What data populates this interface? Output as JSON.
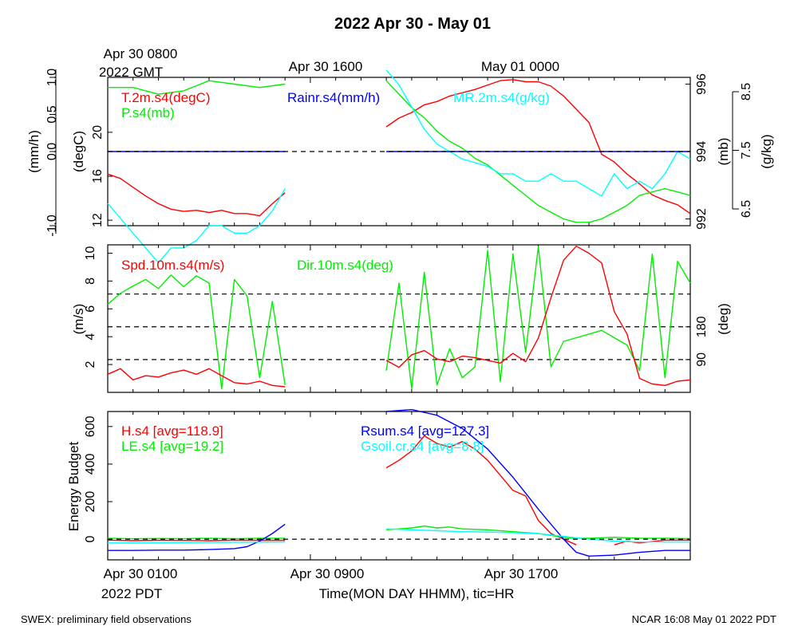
{
  "title": "2022 Apr 30 - May 01",
  "top_time_labels": {
    "start_line1": "Apr 30 0800",
    "start_line2": "2022 GMT",
    "mid": "Apr 30 1600",
    "end": "May 01 0000"
  },
  "bottom_time_labels": {
    "t1": "Apr 30 0100",
    "t1_zone": "2022 PDT",
    "t2": "Apr 30 0900",
    "t3": "Apr 30 1700",
    "axis_title": "Time(MON DAY HHMM), tic=HR"
  },
  "footer": {
    "left": "SWEX: preliminary field observations",
    "right": "NCAR 16:08 May 01 2022 PDT"
  },
  "colors": {
    "red": "#ff0000",
    "green": "#00ee00",
    "blue": "#0000ff",
    "cyan": "#00ffff",
    "axis": "#000000"
  },
  "chart_data": [
    {
      "type": "line",
      "panel": "top",
      "x_unit": "hours since Apr 30 0100 PDT",
      "xlim": [
        0,
        23
      ],
      "left_axes": [
        {
          "label": "(mm/h)",
          "ticks": [
            "-1.0",
            "0.0",
            "0.5",
            "1.0"
          ],
          "ylim": [
            -1,
            1
          ]
        },
        {
          "label": "(degC)",
          "ticks": [
            "12",
            "16",
            "20"
          ],
          "ylim": [
            11.5,
            25
          ]
        }
      ],
      "right_axes": [
        {
          "label": "(mb)",
          "ticks": [
            "992",
            "994",
            "996"
          ],
          "ylim": [
            991.8,
            996.2
          ]
        },
        {
          "label": "(g/kg)",
          "ticks": [
            "6.5",
            "7.5",
            "8.5"
          ],
          "ylim": [
            6.5,
            8.5
          ]
        }
      ],
      "reference_lines": [
        {
          "value": 0.0,
          "axis": "(mm/h)",
          "style": "dashed"
        }
      ],
      "series": [
        {
          "name": "T.2m.s4(degC)",
          "color": "#ff0000",
          "axis": "(degC)",
          "segments": [
            {
              "x": [
                0,
                0.5,
                1,
                1.5,
                2,
                2.5,
                3,
                3.5,
                4,
                4.5,
                5,
                5.5,
                6,
                6.5,
                7
              ],
              "y": [
                16.2,
                15.8,
                15.0,
                14.2,
                13.5,
                13.0,
                12.8,
                12.9,
                12.7,
                12.9,
                12.6,
                12.6,
                12.4,
                13.5,
                14.5
              ]
            },
            {
              "x": [
                11,
                11.5,
                12,
                12.5,
                13,
                13.5,
                14,
                14.5,
                15,
                15.5,
                16,
                16.5,
                17,
                17.5,
                18,
                18.5,
                19,
                19.5,
                20,
                20.5,
                21,
                21.5,
                22,
                22.5,
                23
              ],
              "y": [
                20.5,
                21.3,
                21.8,
                22.5,
                22.8,
                23.3,
                23.6,
                23.9,
                24.3,
                24.7,
                24.8,
                24.6,
                24.6,
                24.2,
                23.3,
                22.1,
                20.9,
                18.0,
                17.3,
                16.2,
                15.3,
                14.3,
                13.8,
                13.4,
                12.6
              ]
            }
          ]
        },
        {
          "name": "P.s4(mb)",
          "color": "#00ee00",
          "axis": "(mb)",
          "segments": [
            {
              "x": [
                0,
                1,
                2,
                3,
                4,
                5,
                6,
                7
              ],
              "y": [
                995.9,
                995.9,
                995.7,
                995.8,
                996.1,
                996.0,
                995.9,
                996.0
              ]
            },
            {
              "x": [
                11,
                11.5,
                12,
                12.5,
                13,
                13.5,
                14,
                14.5,
                15,
                15.5,
                16,
                16.5,
                17,
                17.5,
                18,
                18.5,
                19,
                19.5,
                20,
                20.5,
                21,
                21.5,
                22,
                22.5,
                23
              ],
              "y": [
                996.1,
                995.7,
                995.3,
                995.0,
                994.6,
                994.3,
                994.1,
                993.8,
                993.6,
                993.3,
                993.0,
                992.7,
                992.4,
                992.2,
                992.0,
                991.9,
                991.9,
                992.0,
                992.2,
                992.4,
                992.7,
                992.8,
                992.9,
                992.8,
                992.7
              ]
            }
          ]
        },
        {
          "name": "MR.2m.s4(g/kg)",
          "color": "#00ffff",
          "axis": "(g/kg)",
          "segments": [
            {
              "x": [
                0,
                0.5,
                1,
                1.5,
                2,
                2.5,
                3,
                3.5,
                4,
                4.5,
                5,
                5.5,
                6,
                6.5,
                7
              ],
              "y": [
                6.8,
                6.6,
                6.4,
                6.2,
                6.0,
                6.2,
                6.2,
                6.3,
                6.5,
                6.5,
                6.4,
                6.4,
                6.5,
                6.7,
                7.0
              ]
            },
            {
              "x": [
                11,
                11.5,
                12,
                12.5,
                13,
                13.5,
                14,
                14.5,
                15,
                15.5,
                16,
                16.5,
                17,
                17.5,
                18,
                18.5,
                19,
                19.5,
                20,
                20.5,
                21,
                21.5,
                22,
                22.5,
                23
              ],
              "y": [
                8.6,
                8.4,
                8.1,
                7.8,
                7.6,
                7.5,
                7.4,
                7.35,
                7.3,
                7.2,
                7.2,
                7.1,
                7.1,
                7.2,
                7.1,
                7.1,
                7.0,
                6.9,
                7.2,
                7.0,
                7.1,
                7.0,
                7.2,
                7.5,
                7.4
              ]
            }
          ]
        },
        {
          "name": "Rainr.s4(mm/h)",
          "color": "#0000ff",
          "axis": "(mm/h)",
          "segments": [
            {
              "x": [
                0,
                7
              ],
              "y": [
                0,
                0
              ]
            },
            {
              "x": [
                11,
                23
              ],
              "y": [
                0,
                0
              ]
            }
          ]
        }
      ]
    },
    {
      "type": "line",
      "panel": "middle",
      "x_unit": "hours since Apr 30 0100 PDT",
      "xlim": [
        0,
        23
      ],
      "left_axis": {
        "label": "(m/s)",
        "ticks": [
          "2",
          "4",
          "6",
          "8",
          "10"
        ],
        "ylim": [
          0,
          10.6
        ]
      },
      "right_axis": {
        "label": "(deg)",
        "ticks": [
          "90",
          "180"
        ],
        "ylim": [
          0,
          405
        ]
      },
      "reference_lines": [
        {
          "value": 90,
          "axis": "(deg)",
          "style": "dashed"
        },
        {
          "value": 180,
          "axis": "(deg)",
          "style": "dashed"
        },
        {
          "value": 270,
          "axis": "(deg)",
          "style": "dashed"
        }
      ],
      "series": [
        {
          "name": "Spd.10m.s4(m/s)",
          "color": "#ff0000",
          "axis": "(m/s)",
          "segments": [
            {
              "x": [
                0,
                0.5,
                1,
                1.5,
                2,
                2.5,
                3,
                3.5,
                4,
                4.5,
                5,
                5.5,
                6,
                6.5,
                7
              ],
              "y": [
                1.3,
                1.7,
                0.9,
                1.2,
                1.1,
                1.4,
                1.6,
                1.3,
                1.7,
                1.2,
                0.7,
                0.6,
                0.8,
                0.5,
                0.4
              ]
            },
            {
              "x": [
                11,
                11.5,
                12,
                12.5,
                13,
                13.5,
                14,
                14.5,
                15,
                15.5,
                16,
                16.5,
                17,
                17.5,
                18,
                18.5,
                19,
                19.5,
                20,
                20.5,
                21,
                21.5,
                22,
                22.5,
                23
              ],
              "y": [
                2.3,
                1.8,
                2.7,
                3.0,
                2.4,
                2.2,
                2.6,
                2.5,
                2.3,
                2.1,
                2.8,
                2.2,
                3.9,
                6.8,
                9.5,
                10.5,
                10.0,
                9.3,
                5.8,
                4.2,
                1.0,
                0.6,
                0.5,
                0.8,
                0.9
              ]
            }
          ]
        },
        {
          "name": "Dir.10m.s4(deg)",
          "color": "#00ee00",
          "axis": "(deg)",
          "segments": [
            {
              "x": [
                0,
                0.5,
                1,
                1.5,
                2,
                2.5,
                3,
                3.5,
                4,
                4.5,
                5,
                5.5,
                6,
                6.5,
                7
              ],
              "y": [
                242,
                272,
                292,
                310,
                285,
                322,
                290,
                320,
                300,
                10,
                310,
                265,
                40,
                250,
                20
              ]
            },
            {
              "x": [
                11,
                11.5,
                12,
                12.5,
                13,
                13.5,
                14,
                14.5,
                15,
                15.5,
                16,
                16.5,
                17,
                17.5,
                18,
                18.5,
                19,
                19.5,
                20,
                20.5,
                21,
                21.5,
                22,
                22.5,
                23
              ],
              "y": [
                60,
                300,
                10,
                330,
                20,
                120,
                40,
                70,
                390,
                30,
                380,
                110,
                400,
                70,
                140,
                150,
                160,
                170,
                150,
                130,
                60,
                380,
                40,
                360,
                300
              ]
            }
          ]
        }
      ]
    },
    {
      "type": "line",
      "panel": "bottom",
      "x_unit": "hours since Apr 30 0100 PDT",
      "xlim": [
        0,
        23
      ],
      "ylabel": "Energy Budget",
      "ylim": [
        -110,
        680
      ],
      "y_ticks": [
        "0",
        "200",
        "400",
        "600"
      ],
      "reference_lines": [
        {
          "value": 0,
          "style": "dashed"
        }
      ],
      "series": [
        {
          "name": "H.s4 [avg=118.9]",
          "color": "#ff0000",
          "segments": [
            {
              "x": [
                0,
                1,
                2,
                3,
                4,
                5,
                6,
                7
              ],
              "y": [
                -5,
                -8,
                -6,
                -7,
                -8,
                -5,
                -6,
                -6
              ]
            },
            {
              "x": [
                11,
                11.5,
                12,
                12.5,
                13,
                13.5,
                14,
                14.5,
                15,
                15.5,
                16,
                16.5,
                17,
                17.5,
                18,
                18.5
              ],
              "y": [
                380,
                420,
                470,
                550,
                510,
                490,
                520,
                480,
                420,
                340,
                260,
                230,
                100,
                30,
                0,
                -30
              ]
            },
            {
              "x": [
                20,
                20.5,
                21,
                22,
                23
              ],
              "y": [
                -30,
                -10,
                -20,
                -5,
                -5
              ]
            }
          ]
        },
        {
          "name": "LE.s4 [avg=19.2]",
          "color": "#00ee00",
          "segments": [
            {
              "x": [
                0,
                1,
                2,
                3,
                4,
                5,
                6,
                7
              ],
              "y": [
                5,
                2,
                4,
                3,
                5,
                3,
                5,
                5
              ]
            },
            {
              "x": [
                11,
                11.5,
                12,
                12.5,
                13,
                13.5,
                14,
                15,
                16,
                17,
                18,
                18.5,
                19,
                20,
                21,
                22,
                23
              ],
              "y": [
                50,
                55,
                60,
                70,
                60,
                65,
                55,
                50,
                40,
                30,
                10,
                5,
                5,
                10,
                5,
                5,
                3
              ]
            }
          ]
        },
        {
          "name": "Rsum.s4 [avg=127.3]",
          "color": "#0000ff",
          "segments": [
            {
              "x": [
                0,
                1,
                2,
                3,
                4,
                5,
                5.5,
                6,
                6.5,
                7
              ],
              "y": [
                -60,
                -60,
                -58,
                -58,
                -55,
                -50,
                -40,
                -10,
                30,
                80
              ]
            },
            {
              "x": [
                11,
                12,
                13,
                14,
                15,
                16,
                17,
                17.5,
                18,
                18.5,
                19,
                20,
                21,
                22,
                23
              ],
              "y": [
                680,
                690,
                660,
                590,
                480,
                330,
                160,
                80,
                0,
                -70,
                -90,
                -85,
                -70,
                -60,
                -60
              ]
            }
          ]
        },
        {
          "name": "Gsoil.cr.s4 [avg=8.8]",
          "color": "#00ffff",
          "segments": [
            {
              "x": [
                0,
                7
              ],
              "y": [
                -20,
                -15
              ]
            },
            {
              "x": [
                11,
                12,
                13,
                14,
                15,
                16,
                17,
                18,
                19,
                20,
                21,
                22,
                23
              ],
              "y": [
                55,
                50,
                45,
                40,
                38,
                35,
                30,
                15,
                0,
                -10,
                -15,
                -15,
                -15
              ]
            }
          ]
        }
      ]
    }
  ]
}
